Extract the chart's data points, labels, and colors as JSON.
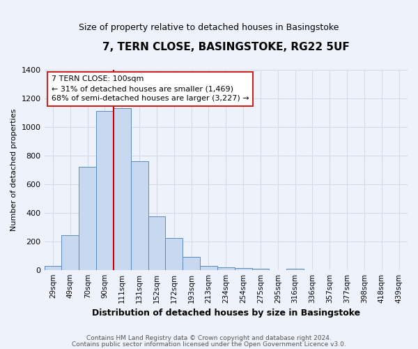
{
  "title": "7, TERN CLOSE, BASINGSTOKE, RG22 5UF",
  "subtitle": "Size of property relative to detached houses in Basingstoke",
  "xlabel": "Distribution of detached houses by size in Basingstoke",
  "ylabel": "Number of detached properties",
  "bar_labels": [
    "29sqm",
    "49sqm",
    "70sqm",
    "90sqm",
    "111sqm",
    "131sqm",
    "152sqm",
    "172sqm",
    "193sqm",
    "213sqm",
    "234sqm",
    "254sqm",
    "275sqm",
    "295sqm",
    "316sqm",
    "336sqm",
    "357sqm",
    "377sqm",
    "398sqm",
    "418sqm",
    "439sqm"
  ],
  "bar_values": [
    30,
    240,
    720,
    1110,
    1130,
    760,
    375,
    225,
    90,
    28,
    20,
    15,
    10,
    0,
    10,
    0,
    0,
    0,
    0,
    0,
    0
  ],
  "bar_color": "#c8d8ef",
  "bar_edge_color": "#5b8abf",
  "grid_color": "#d0dce8",
  "background_color": "#eef2fa",
  "vline_x_index": 3.5,
  "vline_color": "#cc0000",
  "annotation_line1": "7 TERN CLOSE: 100sqm",
  "annotation_line2": "← 31% of detached houses are smaller (1,469)",
  "annotation_line3": "68% of semi-detached houses are larger (3,227) →",
  "annotation_box_color": "#ffffff",
  "annotation_box_edge": "#cc2222",
  "ylim": [
    0,
    1400
  ],
  "yticks": [
    0,
    200,
    400,
    600,
    800,
    1000,
    1200,
    1400
  ],
  "footer1": "Contains HM Land Registry data © Crown copyright and database right 2024.",
  "footer2": "Contains public sector information licensed under the Open Government Licence v3.0."
}
